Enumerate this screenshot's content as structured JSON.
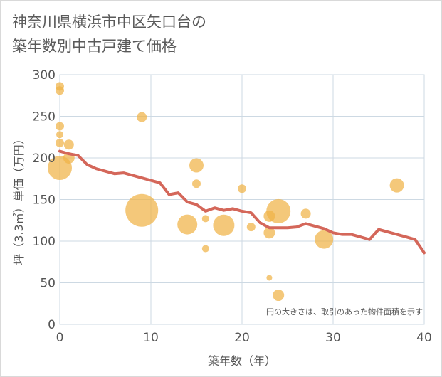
{
  "title_line1": "神奈川県横浜市中区矢口台の",
  "title_line2": "築年数別中古戸建て価格",
  "chart_data": {
    "type": "scatter",
    "title": "神奈川県横浜市中区矢口台の築年数別中古戸建て価格",
    "xlabel": "築年数（年）",
    "ylabel": "坪（3.3㎡）単価（万円）",
    "xlim": [
      0,
      40
    ],
    "ylim": [
      0,
      300
    ],
    "xticks": [
      0,
      10,
      20,
      30,
      40
    ],
    "yticks": [
      0,
      50,
      100,
      150,
      200,
      250,
      300
    ],
    "grid": true,
    "note": "円の大きさは、取引のあった物件面積を示す",
    "colors": {
      "bubble": "#f0b347",
      "line": "#d4675a",
      "grid": "#cdd9e3"
    },
    "bubbles": [
      {
        "x": 0,
        "y": 286,
        "size": 6
      },
      {
        "x": 0,
        "y": 281,
        "size": 6
      },
      {
        "x": 0,
        "y": 238,
        "size": 6
      },
      {
        "x": 0,
        "y": 228,
        "size": 5
      },
      {
        "x": 0,
        "y": 218,
        "size": 6
      },
      {
        "x": 0,
        "y": 188,
        "size": 17
      },
      {
        "x": 1,
        "y": 216,
        "size": 7
      },
      {
        "x": 1,
        "y": 200,
        "size": 8
      },
      {
        "x": 9,
        "y": 249,
        "size": 7
      },
      {
        "x": 9,
        "y": 137,
        "size": 23
      },
      {
        "x": 14,
        "y": 120,
        "size": 14
      },
      {
        "x": 15,
        "y": 191,
        "size": 10
      },
      {
        "x": 15,
        "y": 169,
        "size": 6
      },
      {
        "x": 16,
        "y": 127,
        "size": 5
      },
      {
        "x": 16,
        "y": 91,
        "size": 5
      },
      {
        "x": 18,
        "y": 119,
        "size": 15
      },
      {
        "x": 20,
        "y": 163,
        "size": 6
      },
      {
        "x": 21,
        "y": 117,
        "size": 6
      },
      {
        "x": 23,
        "y": 130,
        "size": 8
      },
      {
        "x": 23,
        "y": 110,
        "size": 8
      },
      {
        "x": 23,
        "y": 56,
        "size": 4
      },
      {
        "x": 24,
        "y": 136,
        "size": 17
      },
      {
        "x": 24,
        "y": 35,
        "size": 8
      },
      {
        "x": 27,
        "y": 133,
        "size": 7
      },
      {
        "x": 29,
        "y": 102,
        "size": 13
      },
      {
        "x": 37,
        "y": 167,
        "size": 10
      }
    ],
    "line": {
      "x": [
        0,
        1,
        2,
        3,
        4,
        5,
        6,
        7,
        8,
        9,
        10,
        11,
        12,
        13,
        14,
        15,
        16,
        17,
        18,
        19,
        20,
        21,
        22,
        23,
        24,
        25,
        26,
        27,
        28,
        29,
        30,
        31,
        32,
        33,
        34,
        35,
        36,
        37,
        38,
        39,
        40
      ],
      "y": [
        208,
        205,
        203,
        192,
        187,
        184,
        181,
        182,
        179,
        176,
        173,
        170,
        156,
        158,
        147,
        144,
        136,
        140,
        137,
        139,
        136,
        134,
        122,
        116,
        116,
        116,
        117,
        121,
        118,
        115,
        110,
        108,
        108,
        105,
        102,
        114,
        111,
        108,
        105,
        102,
        86
      ]
    }
  }
}
